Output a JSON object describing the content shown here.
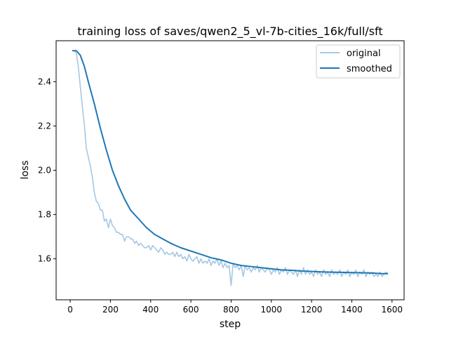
{
  "chart_data": {
    "type": "line",
    "title": "training loss of saves/qwen2_5_vl-7b-cities_16k/full/sft",
    "xlabel": "step",
    "ylabel": "loss",
    "xlim": [
      -70,
      1660
    ],
    "ylim": [
      1.415,
      2.585
    ],
    "x_ticks": [
      0,
      200,
      400,
      600,
      800,
      1000,
      1200,
      1400,
      1600
    ],
    "y_ticks": [
      1.6,
      1.8,
      2.0,
      2.2,
      2.4
    ],
    "x_tick_labels": [
      "0",
      "200",
      "400",
      "600",
      "800",
      "1000",
      "1200",
      "1400",
      "1600"
    ],
    "y_tick_labels": [
      "1.6",
      "1.8",
      "2.0",
      "2.2",
      "2.4"
    ],
    "grid": false,
    "legend_position": "top-right",
    "series": [
      {
        "name": "original",
        "color": "#a6c8e3",
        "points": [
          [
            10,
            2.54
          ],
          [
            20,
            2.54
          ],
          [
            30,
            2.53
          ],
          [
            40,
            2.47
          ],
          [
            50,
            2.38
          ],
          [
            60,
            2.29
          ],
          [
            70,
            2.21
          ],
          [
            80,
            2.1
          ],
          [
            90,
            2.06
          ],
          [
            100,
            2.02
          ],
          [
            110,
            1.97
          ],
          [
            120,
            1.9
          ],
          [
            130,
            1.86
          ],
          [
            140,
            1.85
          ],
          [
            150,
            1.82
          ],
          [
            160,
            1.82
          ],
          [
            170,
            1.77
          ],
          [
            180,
            1.78
          ],
          [
            190,
            1.74
          ],
          [
            200,
            1.78
          ],
          [
            210,
            1.75
          ],
          [
            220,
            1.74
          ],
          [
            230,
            1.72
          ],
          [
            240,
            1.72
          ],
          [
            250,
            1.71
          ],
          [
            260,
            1.71
          ],
          [
            270,
            1.68
          ],
          [
            280,
            1.7
          ],
          [
            290,
            1.7
          ],
          [
            300,
            1.69
          ],
          [
            310,
            1.69
          ],
          [
            320,
            1.67
          ],
          [
            330,
            1.68
          ],
          [
            340,
            1.66
          ],
          [
            350,
            1.67
          ],
          [
            360,
            1.66
          ],
          [
            370,
            1.65
          ],
          [
            380,
            1.65
          ],
          [
            390,
            1.66
          ],
          [
            400,
            1.64
          ],
          [
            410,
            1.66
          ],
          [
            420,
            1.65
          ],
          [
            430,
            1.64
          ],
          [
            440,
            1.63
          ],
          [
            450,
            1.65
          ],
          [
            460,
            1.64
          ],
          [
            470,
            1.62
          ],
          [
            480,
            1.63
          ],
          [
            490,
            1.62
          ],
          [
            500,
            1.62
          ],
          [
            510,
            1.63
          ],
          [
            520,
            1.61
          ],
          [
            530,
            1.63
          ],
          [
            540,
            1.61
          ],
          [
            550,
            1.62
          ],
          [
            560,
            1.6
          ],
          [
            570,
            1.61
          ],
          [
            580,
            1.59
          ],
          [
            590,
            1.62
          ],
          [
            600,
            1.6
          ],
          [
            610,
            1.59
          ],
          [
            620,
            1.6
          ],
          [
            630,
            1.61
          ],
          [
            640,
            1.58
          ],
          [
            650,
            1.6
          ],
          [
            660,
            1.58
          ],
          [
            670,
            1.59
          ],
          [
            680,
            1.58
          ],
          [
            690,
            1.6
          ],
          [
            700,
            1.57
          ],
          [
            710,
            1.59
          ],
          [
            720,
            1.58
          ],
          [
            730,
            1.6
          ],
          [
            740,
            1.57
          ],
          [
            750,
            1.59
          ],
          [
            760,
            1.56
          ],
          [
            770,
            1.58
          ],
          [
            780,
            1.56
          ],
          [
            790,
            1.57
          ],
          [
            800,
            1.48
          ],
          [
            810,
            1.58
          ],
          [
            820,
            1.56
          ],
          [
            830,
            1.57
          ],
          [
            840,
            1.55
          ],
          [
            850,
            1.57
          ],
          [
            860,
            1.52
          ],
          [
            870,
            1.57
          ],
          [
            880,
            1.55
          ],
          [
            890,
            1.56
          ],
          [
            900,
            1.54
          ],
          [
            910,
            1.56
          ],
          [
            920,
            1.55
          ],
          [
            930,
            1.57
          ],
          [
            940,
            1.54
          ],
          [
            950,
            1.56
          ],
          [
            960,
            1.55
          ],
          [
            970,
            1.54
          ],
          [
            980,
            1.56
          ],
          [
            990,
            1.55
          ],
          [
            1000,
            1.53
          ],
          [
            1010,
            1.55
          ],
          [
            1020,
            1.54
          ],
          [
            1030,
            1.56
          ],
          [
            1040,
            1.53
          ],
          [
            1050,
            1.55
          ],
          [
            1060,
            1.54
          ],
          [
            1070,
            1.56
          ],
          [
            1080,
            1.53
          ],
          [
            1090,
            1.55
          ],
          [
            1100,
            1.54
          ],
          [
            1110,
            1.53
          ],
          [
            1120,
            1.55
          ],
          [
            1130,
            1.52
          ],
          [
            1140,
            1.55
          ],
          [
            1150,
            1.53
          ],
          [
            1160,
            1.56
          ],
          [
            1170,
            1.53
          ],
          [
            1180,
            1.55
          ],
          [
            1190,
            1.53
          ],
          [
            1200,
            1.54
          ],
          [
            1210,
            1.52
          ],
          [
            1220,
            1.55
          ],
          [
            1230,
            1.53
          ],
          [
            1240,
            1.54
          ],
          [
            1250,
            1.52
          ],
          [
            1260,
            1.55
          ],
          [
            1270,
            1.53
          ],
          [
            1280,
            1.54
          ],
          [
            1290,
            1.52
          ],
          [
            1300,
            1.55
          ],
          [
            1310,
            1.53
          ],
          [
            1320,
            1.54
          ],
          [
            1330,
            1.53
          ],
          [
            1340,
            1.55
          ],
          [
            1350,
            1.52
          ],
          [
            1360,
            1.54
          ],
          [
            1370,
            1.53
          ],
          [
            1380,
            1.55
          ],
          [
            1390,
            1.52
          ],
          [
            1400,
            1.54
          ],
          [
            1410,
            1.53
          ],
          [
            1420,
            1.55
          ],
          [
            1430,
            1.52
          ],
          [
            1440,
            1.54
          ],
          [
            1450,
            1.53
          ],
          [
            1460,
            1.55
          ],
          [
            1470,
            1.52
          ],
          [
            1480,
            1.54
          ],
          [
            1490,
            1.53
          ],
          [
            1500,
            1.54
          ],
          [
            1510,
            1.52
          ],
          [
            1520,
            1.53
          ],
          [
            1530,
            1.52
          ],
          [
            1540,
            1.54
          ],
          [
            1550,
            1.52
          ],
          [
            1560,
            1.53
          ],
          [
            1570,
            1.54
          ],
          [
            1580,
            1.53
          ]
        ]
      },
      {
        "name": "smoothed",
        "color": "#1f77b4",
        "points": [
          [
            10,
            2.54
          ],
          [
            30,
            2.54
          ],
          [
            50,
            2.52
          ],
          [
            70,
            2.47
          ],
          [
            90,
            2.4
          ],
          [
            120,
            2.3
          ],
          [
            150,
            2.19
          ],
          [
            180,
            2.09
          ],
          [
            210,
            2.0
          ],
          [
            240,
            1.93
          ],
          [
            270,
            1.87
          ],
          [
            300,
            1.82
          ],
          [
            340,
            1.78
          ],
          [
            380,
            1.74
          ],
          [
            420,
            1.71
          ],
          [
            460,
            1.69
          ],
          [
            500,
            1.67
          ],
          [
            550,
            1.65
          ],
          [
            600,
            1.635
          ],
          [
            650,
            1.62
          ],
          [
            700,
            1.605
          ],
          [
            750,
            1.595
          ],
          [
            800,
            1.58
          ],
          [
            850,
            1.57
          ],
          [
            900,
            1.565
          ],
          [
            950,
            1.56
          ],
          [
            1000,
            1.555
          ],
          [
            1050,
            1.55
          ],
          [
            1100,
            1.548
          ],
          [
            1150,
            1.545
          ],
          [
            1200,
            1.543
          ],
          [
            1250,
            1.541
          ],
          [
            1300,
            1.54
          ],
          [
            1350,
            1.539
          ],
          [
            1400,
            1.538
          ],
          [
            1450,
            1.537
          ],
          [
            1500,
            1.536
          ],
          [
            1550,
            1.533
          ],
          [
            1580,
            1.533
          ]
        ]
      }
    ]
  }
}
